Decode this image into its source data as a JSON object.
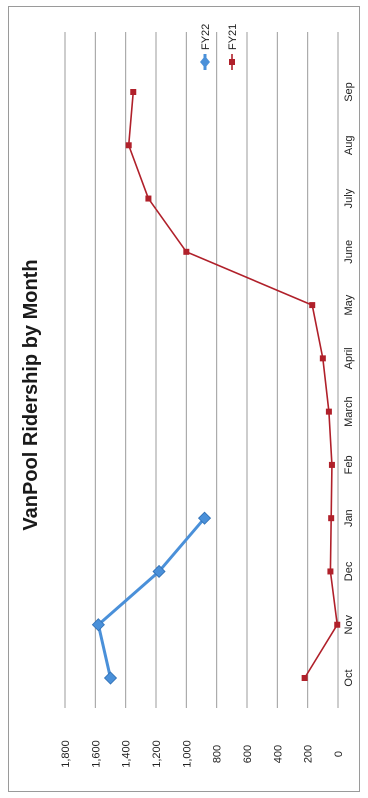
{
  "chart_data": {
    "type": "line",
    "title": "VanPool Ridership by Month",
    "categories": [
      "Oct",
      "Nov",
      "Dec",
      "Jan",
      "Feb",
      "March",
      "April",
      "May",
      "June",
      "July",
      "Aug",
      "Sep"
    ],
    "series": [
      {
        "name": "FY22",
        "color": "#4a90d9",
        "marker": "diamond",
        "values": [
          1500,
          1580,
          1180,
          880,
          null,
          null,
          null,
          null,
          null,
          null,
          null,
          null
        ]
      },
      {
        "name": "FY21",
        "color": "#b0202a",
        "marker": "square",
        "values": [
          220,
          5,
          50,
          45,
          40,
          60,
          100,
          170,
          1000,
          1250,
          1380,
          1350
        ]
      }
    ],
    "ylim": [
      0,
      1800
    ],
    "yticks": [
      "0",
      "200",
      "400",
      "600",
      "800",
      "1,000",
      "1,200",
      "1,400",
      "1,600",
      "1,800"
    ],
    "grid": true,
    "legend_position": "top-right",
    "orientation": "rotated-90-clockwise"
  }
}
